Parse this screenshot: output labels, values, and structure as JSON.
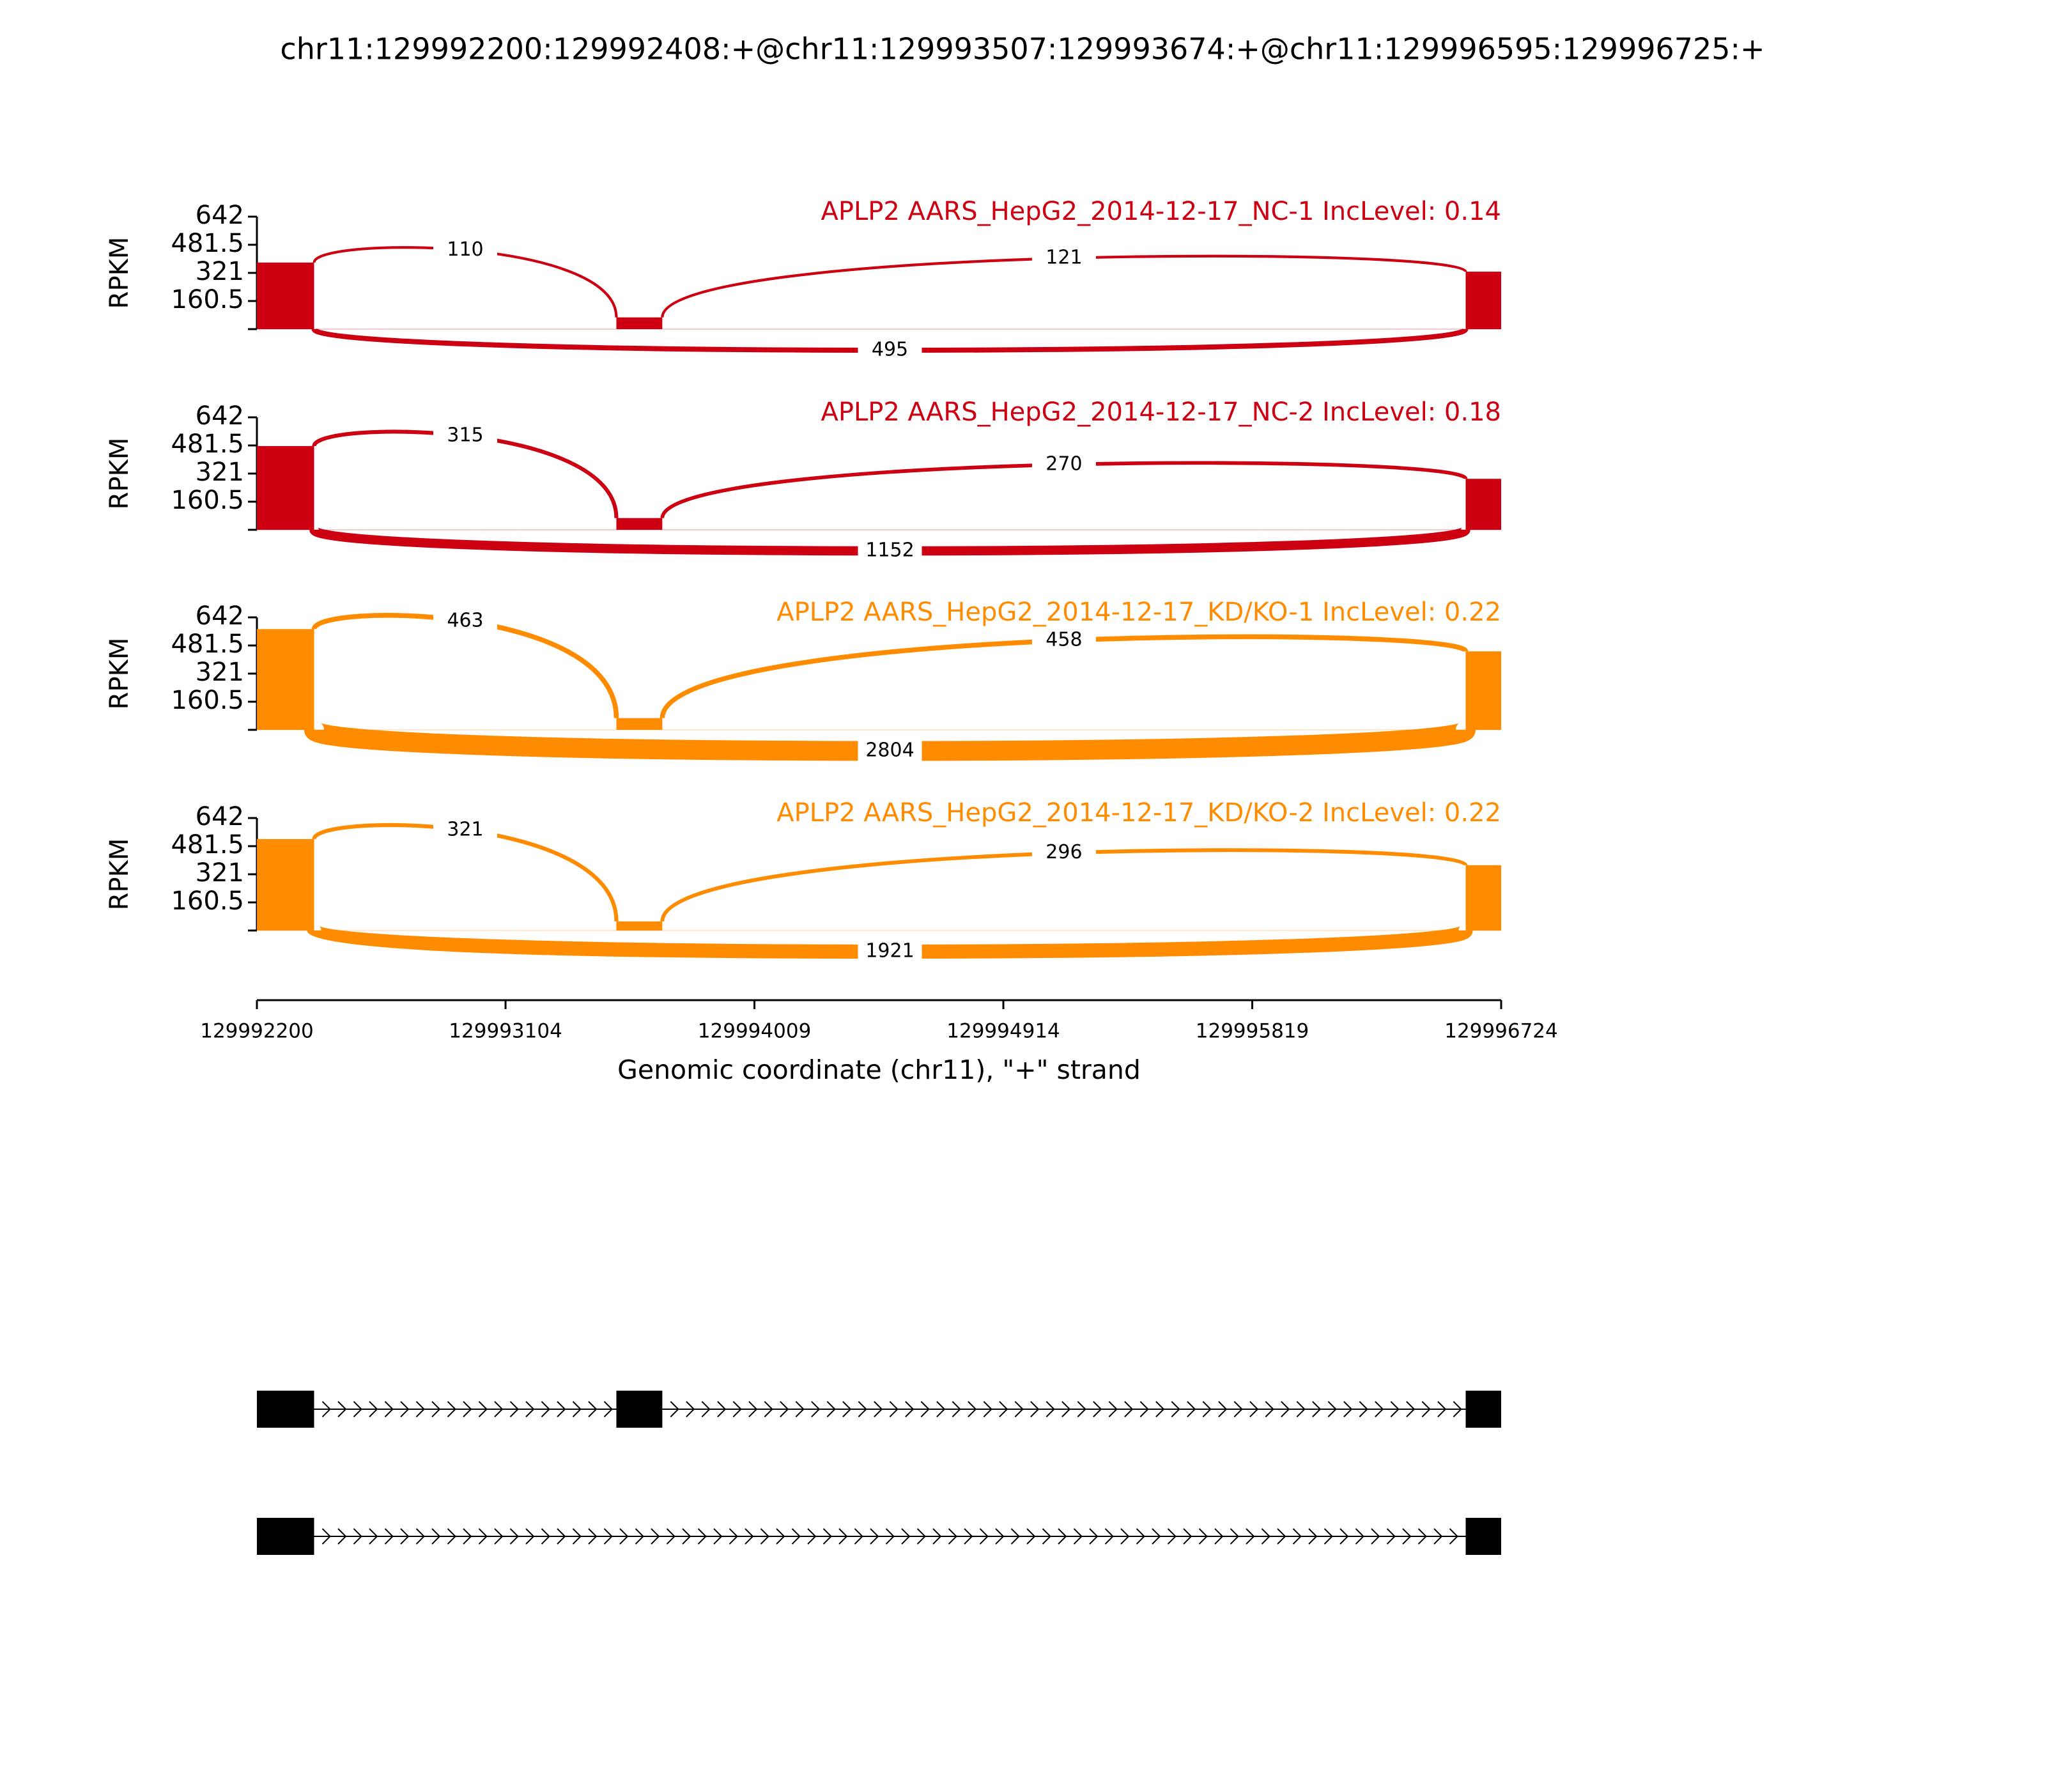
{
  "chart_data": {
    "type": "sashimi",
    "title": "chr11:129992200:129992408:+@chr11:129993507:129993674:+@chr11:129996595:129996725:+",
    "xlabel": "Genomic coordinate (chr11), \"+\" strand",
    "xlim": [
      129992200,
      129996724
    ],
    "xticks": [
      129992200,
      129993104,
      129994009,
      129994914,
      129995819,
      129996724
    ],
    "ylim": [
      0,
      642
    ],
    "yticks": [
      160.5,
      321,
      481.5,
      642
    ],
    "ylabel": "RPKM",
    "junctions": [
      [
        129992408,
        129993507
      ],
      [
        129993674,
        129996595
      ],
      [
        129992408,
        129996595
      ]
    ],
    "isoforms": [
      [
        [
          129992200,
          129992408
        ],
        [
          129993507,
          129993674
        ],
        [
          129996595,
          129996725
        ]
      ],
      [
        [
          129992200,
          129992408
        ],
        [
          129996595,
          129996725
        ]
      ]
    ],
    "panels": [
      {
        "label": "APLP2 AARS_HepG2_2014-12-17_NC-1 IncLevel: 0.14",
        "color": "#cc0011",
        "coverage": [
          380,
          67,
          328
        ],
        "junction_counts": [
          110,
          121,
          495
        ]
      },
      {
        "label": "APLP2 AARS_HepG2_2014-12-17_NC-2 IncLevel: 0.18",
        "color": "#cc0011",
        "coverage": [
          478,
          67,
          291
        ],
        "junction_counts": [
          315,
          270,
          1152
        ]
      },
      {
        "label": "APLP2 AARS_HepG2_2014-12-17_KD/KO-1 IncLevel: 0.22",
        "color": "#ff8c00",
        "coverage": [
          575,
          67,
          448
        ],
        "junction_counts": [
          463,
          458,
          2804
        ]
      },
      {
        "label": "APLP2 AARS_HepG2_2014-12-17_KD/KO-2 IncLevel: 0.22",
        "color": "#ff8c00",
        "coverage": [
          522,
          52,
          373
        ],
        "junction_counts": [
          321,
          296,
          1921
        ]
      }
    ]
  }
}
